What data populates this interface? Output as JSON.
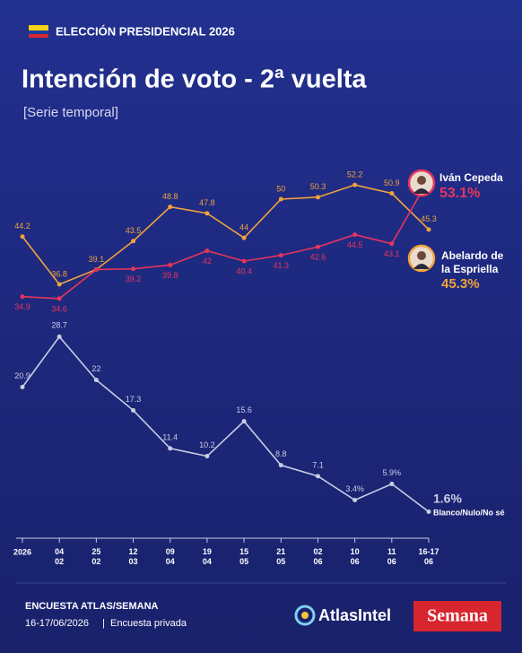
{
  "chart_data": {
    "type": "line",
    "kicker": "ELECCIÓN PRESIDENCIAL 2026",
    "title": "Intención de voto - 2ª vuelta",
    "subtitle": "[Serie temporal]",
    "categories": [
      "2026",
      "04\n02",
      "25\n02",
      "12\n03",
      "09\n04",
      "19\n04",
      "15\n05",
      "21\n05",
      "02\n06",
      "10\n06",
      "11\n06",
      "16-17\n06"
    ],
    "ylim": [
      0,
      60
    ],
    "series": [
      {
        "name": "Abelardo de la Espriella",
        "color": "#f2a23c",
        "values": [
          44.2,
          36.8,
          39.1,
          43.5,
          48.8,
          47.8,
          44,
          50,
          50.3,
          52.2,
          50.9,
          45.3
        ],
        "end_label": "45.3%"
      },
      {
        "name": "Iván Cepeda",
        "color": "#e8345c",
        "values": [
          34.9,
          34.6,
          39.1,
          39.2,
          39.8,
          42,
          40.4,
          41.3,
          42.6,
          44.5,
          43.1,
          53.1
        ],
        "value_labels": [
          "34.9",
          "34.6",
          null,
          "39.2",
          "39.8",
          "42",
          "40.4",
          "41.3",
          "42.6",
          "44.5",
          "43.1",
          null
        ],
        "end_label": "53.1%"
      },
      {
        "name": "Blanco/Nulo/No sé",
        "color": "#c9cde3",
        "values": [
          20.9,
          28.7,
          22,
          17.3,
          11.4,
          10.2,
          15.6,
          8.8,
          7.1,
          3.4,
          5.9,
          1.6
        ],
        "value_labels": [
          "20.9",
          "28.7",
          "22",
          "17.3",
          "11.4",
          "10.2",
          "15.6",
          "8.8",
          "7.1",
          "3.4%",
          "5.9%",
          null
        ],
        "end_label": "1.6%"
      }
    ],
    "source": "ENCUESTA ATLAS/SEMANA",
    "date": "16-17/06/2026",
    "note": "Encuesta privada",
    "logos": [
      "AtlasIntel",
      "Semana"
    ]
  }
}
